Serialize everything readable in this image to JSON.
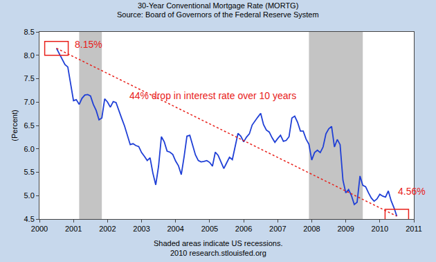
{
  "chart_data": {
    "type": "line",
    "title": "30-Year Conventional Mortgage Rate (MORTG)",
    "subtitle": "Source: Board of Governors of the Federal Reserve System",
    "y_label": "(Percent)",
    "notes": [
      "Shaded areas indicate US recessions.",
      "2010 research.stlouisfed.org"
    ],
    "annotations": [
      "8.15%",
      "44% drop in interest rate over 10 years",
      "4.56%"
    ],
    "color": "#1f3fd6",
    "grid": false,
    "xlim": [
      2000,
      2011
    ],
    "xticks": [
      2000,
      2001,
      2002,
      2003,
      2004,
      2005,
      2006,
      2007,
      2008,
      2009,
      2010,
      2011
    ],
    "ylim": [
      4.5,
      8.5
    ],
    "yticks": [
      4.5,
      {
        "value": 5,
        "label": "5.0"
      },
      5.5,
      {
        "value": 6,
        "label": "6.0"
      },
      6.5,
      {
        "value": 7,
        "label": "7.0"
      },
      7.5,
      {
        "value": 8,
        "label": "8.0"
      },
      8.5
    ],
    "recessions": [
      [
        2001.167,
        2001.833
      ],
      [
        2007.917,
        2009.5
      ]
    ],
    "x": [
      2000.5,
      2000.583,
      2000.667,
      2000.75,
      2000.833,
      2000.917,
      2001.0,
      2001.083,
      2001.167,
      2001.25,
      2001.333,
      2001.417,
      2001.5,
      2001.583,
      2001.667,
      2001.75,
      2001.833,
      2001.917,
      2002.0,
      2002.083,
      2002.167,
      2002.25,
      2002.333,
      2002.417,
      2002.5,
      2002.583,
      2002.667,
      2002.75,
      2002.833,
      2002.917,
      2003.0,
      2003.083,
      2003.167,
      2003.25,
      2003.333,
      2003.417,
      2003.5,
      2003.583,
      2003.667,
      2003.75,
      2003.833,
      2003.917,
      2004.0,
      2004.083,
      2004.167,
      2004.25,
      2004.333,
      2004.417,
      2004.5,
      2004.583,
      2004.667,
      2004.75,
      2004.833,
      2004.917,
      2005.0,
      2005.083,
      2005.167,
      2005.25,
      2005.333,
      2005.417,
      2005.5,
      2005.583,
      2005.667,
      2005.75,
      2005.833,
      2005.917,
      2006.0,
      2006.083,
      2006.167,
      2006.25,
      2006.333,
      2006.417,
      2006.5,
      2006.583,
      2006.667,
      2006.75,
      2006.833,
      2006.917,
      2007.0,
      2007.083,
      2007.167,
      2007.25,
      2007.333,
      2007.417,
      2007.5,
      2007.583,
      2007.667,
      2007.75,
      2007.833,
      2007.917,
      2008.0,
      2008.083,
      2008.167,
      2008.25,
      2008.333,
      2008.417,
      2008.5,
      2008.583,
      2008.667,
      2008.75,
      2008.833,
      2008.917,
      2009.0,
      2009.083,
      2009.167,
      2009.25,
      2009.333,
      2009.417,
      2009.5,
      2009.583,
      2009.667,
      2009.75,
      2009.833,
      2009.917,
      2010.0,
      2010.083,
      2010.167,
      2010.25,
      2010.333,
      2010.417,
      2010.5
    ],
    "values": [
      8.15,
      8.03,
      7.91,
      7.8,
      7.75,
      7.38,
      7.03,
      7.05,
      6.95,
      7.08,
      7.15,
      7.16,
      7.13,
      6.95,
      6.82,
      6.62,
      6.66,
      7.07,
      7.0,
      6.89,
      7.01,
      6.99,
      6.81,
      6.65,
      6.49,
      6.29,
      6.09,
      6.11,
      6.07,
      6.05,
      5.92,
      5.84,
      5.75,
      5.81,
      5.48,
      5.23,
      5.63,
      6.26,
      6.15,
      5.95,
      5.93,
      5.88,
      5.74,
      5.64,
      5.45,
      5.83,
      6.27,
      6.29,
      6.06,
      5.87,
      5.75,
      5.72,
      5.73,
      5.75,
      5.71,
      5.63,
      5.93,
      5.86,
      5.72,
      5.58,
      5.7,
      5.82,
      5.77,
      6.07,
      6.33,
      6.27,
      6.15,
      6.25,
      6.32,
      6.51,
      6.6,
      6.68,
      6.76,
      6.52,
      6.4,
      6.36,
      6.24,
      6.14,
      6.22,
      6.29,
      6.16,
      6.18,
      6.26,
      6.66,
      6.7,
      6.57,
      6.38,
      6.38,
      6.21,
      6.1,
      5.76,
      5.92,
      5.97,
      5.92,
      6.04,
      6.32,
      6.43,
      6.48,
      6.04,
      6.2,
      6.09,
      5.33,
      5.06,
      5.13,
      5.0,
      4.81,
      4.86,
      5.42,
      5.22,
      5.19,
      5.06,
      4.95,
      4.88,
      4.93,
      5.03,
      4.99,
      4.97,
      5.1,
      4.89,
      4.74,
      4.56
    ]
  }
}
